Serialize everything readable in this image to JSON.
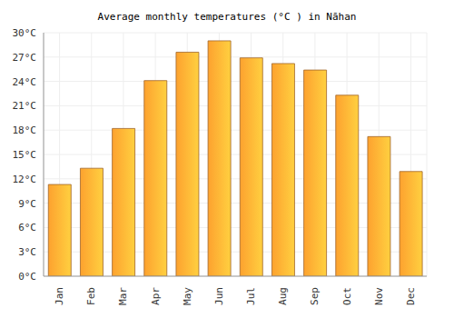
{
  "chart_data": {
    "type": "bar",
    "title": "Average monthly temperatures (°C ) in Nāhan",
    "categories": [
      "Jan",
      "Feb",
      "Mar",
      "Apr",
      "May",
      "Jun",
      "Jul",
      "Aug",
      "Sep",
      "Oct",
      "Nov",
      "Dec"
    ],
    "values": [
      11.3,
      13.3,
      18.2,
      24.1,
      27.6,
      29.0,
      26.9,
      26.2,
      25.4,
      22.3,
      17.2,
      12.9
    ],
    "color": "#fda22f",
    "ylim": [
      0,
      30
    ],
    "yticks": [
      {
        "value": 0,
        "label": "0°C"
      },
      {
        "value": 3,
        "label": "3°C"
      },
      {
        "value": 6,
        "label": "6°C"
      },
      {
        "value": 9,
        "label": "9°C"
      },
      {
        "value": 12,
        "label": "12°C"
      },
      {
        "value": 15,
        "label": "15°C"
      },
      {
        "value": 18,
        "label": "18°C"
      },
      {
        "value": 21,
        "label": "21°C"
      },
      {
        "value": 24,
        "label": "24°C"
      },
      {
        "value": 27,
        "label": "27°C"
      },
      {
        "value": 30,
        "label": "30°C"
      }
    ],
    "grid": true
  }
}
